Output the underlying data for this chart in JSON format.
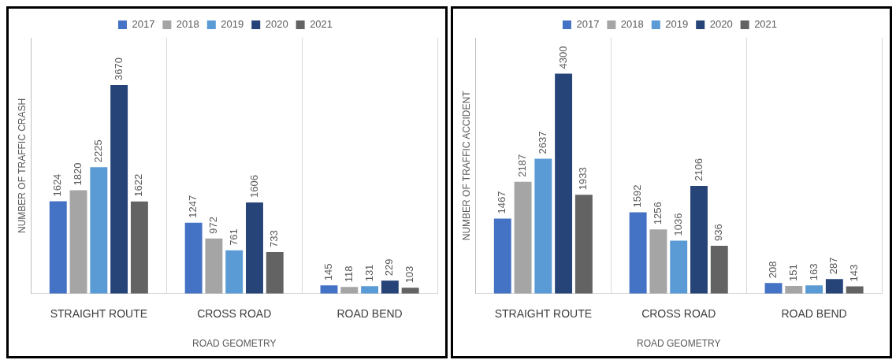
{
  "chart_data": [
    {
      "type": "bar",
      "ylabel": "NUMBER OF TRAFFIC CRASH",
      "xlabel": "ROAD GEOMETRY",
      "categories": [
        "STRAIGHT ROUTE",
        "CROSS ROAD",
        "ROAD BEND"
      ],
      "series": [
        {
          "name": "2017",
          "color": "#4472c4",
          "values": [
            1624,
            1247,
            145
          ]
        },
        {
          "name": "2018",
          "color": "#a5a5a5",
          "values": [
            1820,
            972,
            118
          ]
        },
        {
          "name": "2019",
          "color": "#5b9bd5",
          "values": [
            2225,
            761,
            131
          ]
        },
        {
          "name": "2020",
          "color": "#264478",
          "values": [
            3670,
            1606,
            229
          ]
        },
        {
          "name": "2021",
          "color": "#636363",
          "values": [
            1622,
            733,
            103
          ]
        }
      ],
      "data_labels": true,
      "legend": "top",
      "grid": "x",
      "tick_labels": "x"
    },
    {
      "type": "bar",
      "ylabel": "NUMBER OF TRAFFIC ACCIDENT",
      "xlabel": "ROAD GEOMETRY",
      "categories": [
        "STRAIGHT ROUTE",
        "CROSS ROAD",
        "ROAD BEND"
      ],
      "series": [
        {
          "name": "2017",
          "color": "#4472c4",
          "values": [
            1467,
            1592,
            208
          ]
        },
        {
          "name": "2018",
          "color": "#a5a5a5",
          "values": [
            2187,
            1256,
            151
          ]
        },
        {
          "name": "2019",
          "color": "#5b9bd5",
          "values": [
            2637,
            1036,
            163
          ]
        },
        {
          "name": "2020",
          "color": "#264478",
          "values": [
            4300,
            2106,
            287
          ]
        },
        {
          "name": "2021",
          "color": "#636363",
          "values": [
            1933,
            936,
            143
          ]
        }
      ],
      "data_labels": true,
      "legend": "top",
      "grid": "x",
      "tick_labels": "x"
    }
  ]
}
